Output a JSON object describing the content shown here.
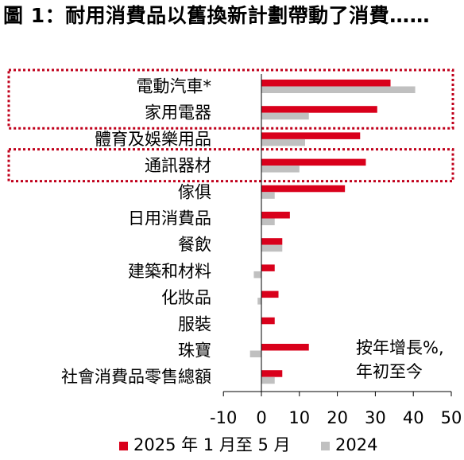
{
  "title": "圖 1：耐用消費品以舊換新計劃帶動了消費……",
  "note": [
    "按年增長%,",
    "年初至今"
  ],
  "colors": {
    "series_2025": "#d9001b",
    "series_2024": "#c0c0c0",
    "highlight": "#c0001b"
  },
  "chart_data": {
    "type": "bar",
    "orientation": "horizontal",
    "categories": [
      "電動汽車*",
      "家用電器",
      "體育及娛樂用品",
      "通訊器材",
      "傢俱",
      "日用消費品",
      "餐飲",
      "建築和材料",
      "化妝品",
      "服裝",
      "珠寶",
      "社會消費品零售總額"
    ],
    "series": [
      {
        "name": "2025 年 1 月至 5 月",
        "color": "#d9001b",
        "values": [
          34,
          30.5,
          26,
          27.5,
          22,
          7.5,
          5.5,
          3.5,
          4.5,
          3.5,
          12.5,
          5.5
        ]
      },
      {
        "name": "2024",
        "color": "#c0c0c0",
        "values": [
          40.5,
          12.5,
          11.5,
          10,
          3.5,
          3.5,
          5.5,
          -2,
          -1,
          0,
          -3,
          3.5
        ]
      }
    ],
    "xlim": [
      -10,
      50
    ],
    "xticks": [
      -10,
      0,
      10,
      20,
      30,
      40,
      50
    ],
    "tick_labels": [
      "-10",
      "0",
      "10",
      "20",
      "30",
      "40",
      "50"
    ],
    "highlighted_categories": [
      [
        "電動汽車*",
        "家用電器"
      ],
      [
        "通訊器材"
      ]
    ],
    "legend_position": "bottom"
  }
}
